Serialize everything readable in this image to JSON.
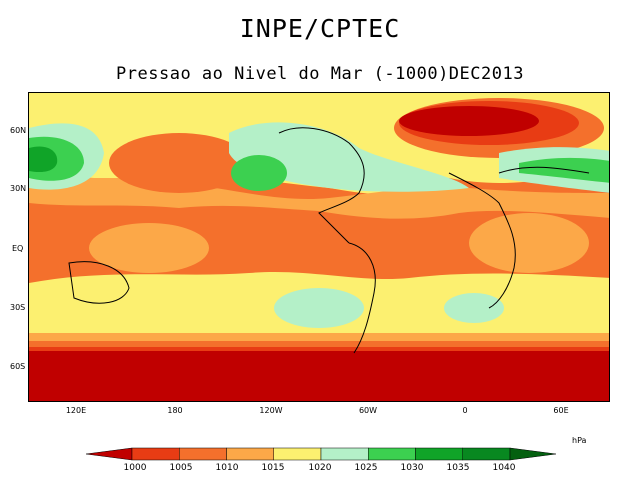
{
  "header": {
    "title": "INPE/CPTEC",
    "subtitle": "Pressao ao Nivel do Mar (-1000)DEC2013"
  },
  "map": {
    "lat_labels": [
      "60N",
      "30N",
      "EQ",
      "30S",
      "60S"
    ],
    "lon_labels": [
      "120E",
      "180",
      "120W",
      "60W",
      "0",
      "60E"
    ],
    "unit": "hPa"
  },
  "colorbar": {
    "levels": [
      "1000",
      "1005",
      "1010",
      "1015",
      "1020",
      "1025",
      "1030",
      "1035",
      "1040"
    ],
    "colors": [
      "#c00000",
      "#e83c14",
      "#f4702c",
      "#fca848",
      "#fcf070",
      "#b4f0c8",
      "#3cd050",
      "#10a428",
      "#088820",
      "#046010"
    ]
  }
}
